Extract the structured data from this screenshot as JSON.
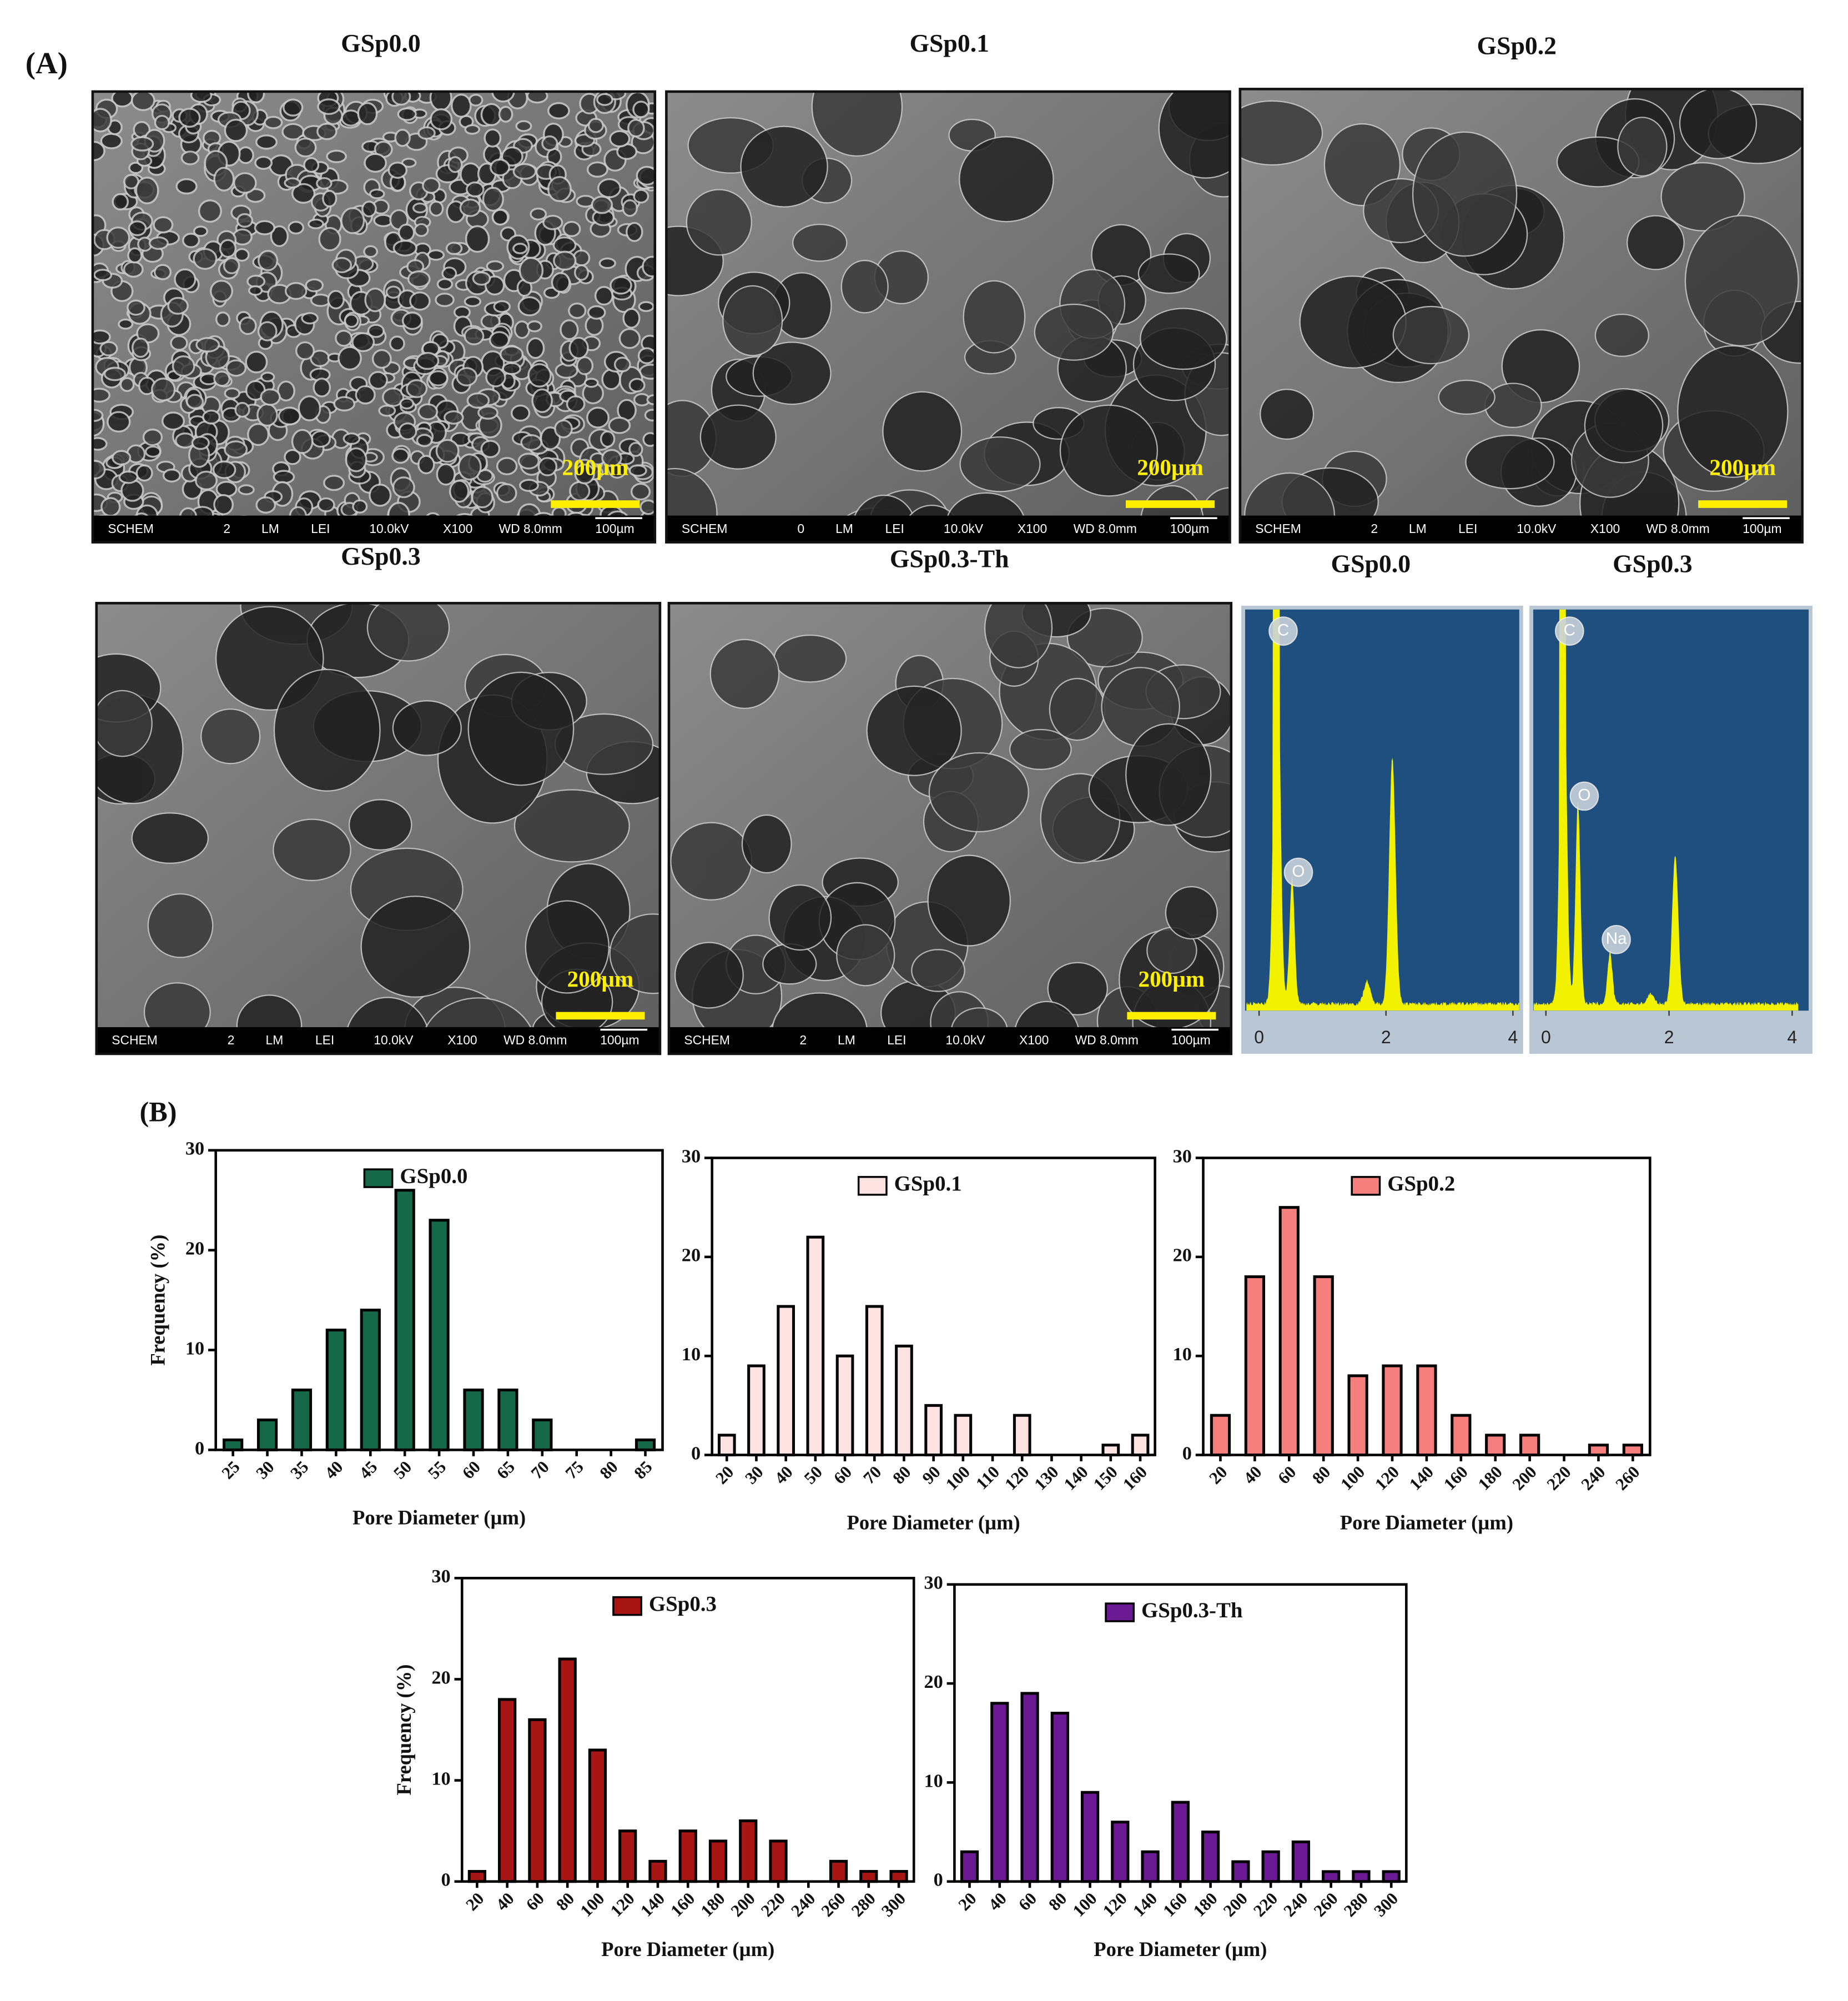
{
  "panel_a": {
    "label": "(A)",
    "sem": [
      {
        "title": "GSp0.0",
        "scale": "200µm",
        "info": [
          "SCHEM",
          "2",
          "LM",
          "LEI",
          "10.0kV",
          "X100",
          "WD 8.0mm",
          "100µm"
        ]
      },
      {
        "title": "GSp0.1",
        "scale": "200µm",
        "info": [
          "SCHEM",
          "0",
          "LM",
          "LEI",
          "10.0kV",
          "X100",
          "WD 8.0mm",
          "100µm"
        ]
      },
      {
        "title": "GSp0.2",
        "scale": "200µm",
        "info": [
          "SCHEM",
          "2",
          "LM",
          "LEI",
          "10.0kV",
          "X100",
          "WD 8.0mm",
          "100µm"
        ]
      },
      {
        "title": "GSp0.3",
        "scale": "200µm",
        "info": [
          "SCHEM",
          "2",
          "LM",
          "LEI",
          "10.0kV",
          "X100",
          "WD 8.0mm",
          "100µm"
        ]
      },
      {
        "title": "GSp0.3-Th",
        "scale": "200µm",
        "info": [
          "SCHEM",
          "2",
          "LM",
          "LEI",
          "10.0kV",
          "X100",
          "WD 8.0mm",
          "100µm"
        ]
      }
    ],
    "eds": [
      {
        "title": "GSp0.0",
        "elements": [
          "C",
          "O"
        ],
        "xlim": [
          0,
          4
        ],
        "xticks": [
          0,
          2,
          4
        ]
      },
      {
        "title": "GSp0.3",
        "elements": [
          "C",
          "O",
          "Na"
        ],
        "xlim": [
          0,
          4
        ],
        "xticks": [
          0,
          2,
          4
        ]
      }
    ]
  },
  "panel_b": {
    "label": "(B)"
  },
  "chart_data": [
    {
      "type": "bar",
      "categories": [
        25,
        30,
        35,
        40,
        45,
        50,
        55,
        60,
        65,
        70,
        75,
        80,
        85
      ],
      "series": [
        {
          "name": "GSp0.0",
          "color": "#16684a",
          "values": [
            1,
            3,
            6,
            12,
            14,
            26,
            23,
            6,
            6,
            3,
            0,
            0,
            1
          ]
        }
      ],
      "ylim": [
        0,
        30
      ],
      "yticks": [
        0,
        10,
        20,
        30
      ],
      "ylabel": "Frequency (%)",
      "xlabel": "Pore Diameter (µm)",
      "legend": "upper center"
    },
    {
      "type": "bar",
      "categories": [
        20,
        30,
        40,
        50,
        60,
        70,
        80,
        90,
        100,
        110,
        120,
        130,
        140,
        150,
        160
      ],
      "series": [
        {
          "name": "GSp0.1",
          "color": "#fde2e2",
          "values": [
            2,
            9,
            15,
            22,
            10,
            15,
            11,
            5,
            4,
            0,
            4,
            0,
            0,
            1,
            2
          ]
        }
      ],
      "ylim": [
        0,
        30
      ],
      "yticks": [
        0,
        10,
        20,
        30
      ],
      "xlabel": "Pore Diameter (µm)",
      "legend": "upper center"
    },
    {
      "type": "bar",
      "categories": [
        20,
        40,
        60,
        80,
        100,
        120,
        140,
        160,
        180,
        200,
        220,
        240,
        260
      ],
      "series": [
        {
          "name": "GSp0.2",
          "color": "#f47f7c",
          "values": [
            4,
            18,
            25,
            18,
            8,
            9,
            9,
            4,
            2,
            2,
            0,
            1,
            1
          ]
        }
      ],
      "ylim": [
        0,
        30
      ],
      "yticks": [
        0,
        10,
        20,
        30
      ],
      "xlabel": "Pore Diameter (µm)",
      "legend": "upper center"
    },
    {
      "type": "bar",
      "categories": [
        20,
        40,
        60,
        80,
        100,
        120,
        140,
        160,
        180,
        200,
        220,
        240,
        260,
        280,
        300
      ],
      "series": [
        {
          "name": "GSp0.3",
          "color": "#a81515",
          "values": [
            1,
            18,
            16,
            22,
            13,
            5,
            2,
            5,
            4,
            6,
            4,
            0,
            2,
            1,
            1
          ]
        }
      ],
      "ylim": [
        0,
        30
      ],
      "yticks": [
        0,
        10,
        20,
        30
      ],
      "ylabel": "Frequency (%)",
      "xlabel": "Pore Diameter (µm)",
      "legend": "upper center"
    },
    {
      "type": "bar",
      "categories": [
        20,
        40,
        60,
        80,
        100,
        120,
        140,
        160,
        180,
        200,
        220,
        240,
        260,
        280,
        300
      ],
      "series": [
        {
          "name": "GSp0.3-Th",
          "color": "#6c1a94",
          "values": [
            3,
            18,
            19,
            17,
            9,
            6,
            3,
            8,
            5,
            2,
            3,
            4,
            1,
            1,
            1
          ]
        }
      ],
      "ylim": [
        0,
        30
      ],
      "yticks": [
        0,
        10,
        20,
        30
      ],
      "xlabel": "Pore Diameter (µm)",
      "legend": "upper center"
    }
  ]
}
